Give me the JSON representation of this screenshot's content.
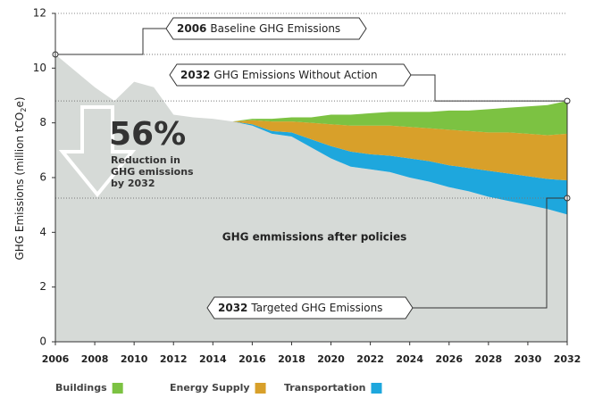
{
  "chart_data": {
    "type": "stacked_area",
    "y_label": {
      "main": "GHG Emissions (million tCO",
      "sub": "2",
      "end": "e)"
    },
    "x": [
      2006,
      2007,
      2008,
      2009,
      2010,
      2011,
      2012,
      2013,
      2014,
      2015,
      2016,
      2017,
      2018,
      2019,
      2020,
      2021,
      2022,
      2023,
      2024,
      2025,
      2026,
      2027,
      2028,
      2029,
      2030,
      2031,
      2032
    ],
    "series": [
      {
        "name": "GHG emmissions after policies",
        "color": "#d6dad7",
        "values": [
          10.5,
          9.9,
          9.3,
          8.8,
          9.5,
          9.3,
          8.3,
          8.2,
          8.15,
          8.05,
          7.9,
          7.6,
          7.5,
          7.1,
          6.7,
          6.4,
          6.3,
          6.2,
          6.0,
          5.85,
          5.65,
          5.5,
          5.3,
          5.15,
          5.0,
          4.85,
          4.65
        ]
      },
      {
        "name": "Transportation",
        "color": "#1ea7dd",
        "values": [
          null,
          null,
          null,
          null,
          null,
          null,
          null,
          null,
          null,
          0,
          0.05,
          0.1,
          0.15,
          0.3,
          0.45,
          0.55,
          0.55,
          0.6,
          0.7,
          0.75,
          0.8,
          0.85,
          0.95,
          1.0,
          1.05,
          1.1,
          1.25
        ]
      },
      {
        "name": "Energy Supply",
        "color": "#d8a02a",
        "values": [
          null,
          null,
          null,
          null,
          null,
          null,
          null,
          null,
          null,
          0,
          0.15,
          0.35,
          0.4,
          0.6,
          0.8,
          0.95,
          1.05,
          1.1,
          1.15,
          1.2,
          1.3,
          1.35,
          1.4,
          1.5,
          1.55,
          1.6,
          1.7
        ]
      },
      {
        "name": "Buildings",
        "color": "#7cc242",
        "values": [
          null,
          null,
          null,
          null,
          null,
          null,
          null,
          null,
          null,
          0,
          0.05,
          0.1,
          0.15,
          0.2,
          0.35,
          0.4,
          0.45,
          0.5,
          0.55,
          0.6,
          0.7,
          0.75,
          0.85,
          0.9,
          1.0,
          1.1,
          1.2
        ]
      }
    ],
    "xlim": [
      2006,
      2032
    ],
    "xticks": [
      2006,
      2008,
      2010,
      2012,
      2014,
      2016,
      2018,
      2020,
      2022,
      2024,
      2026,
      2028,
      2030,
      2032
    ],
    "ylim": [
      0,
      12
    ],
    "yticks": [
      0,
      2,
      4,
      6,
      8,
      10,
      12
    ],
    "annotations": [
      {
        "bold": "2006",
        "text": "Baseline GHG Emissions",
        "x": 2006,
        "y": 10.5
      },
      {
        "bold": "2032",
        "text": "GHG Emissions Without Action",
        "x": 2032,
        "y": 8.8
      },
      {
        "bold": "2032",
        "text": "Targeted GHG Emissions",
        "x": 2032,
        "y": 5.25
      }
    ],
    "reduction": {
      "value": "56%",
      "lines": [
        "Reduction in",
        "GHG emissions",
        "by 2032"
      ]
    }
  }
}
